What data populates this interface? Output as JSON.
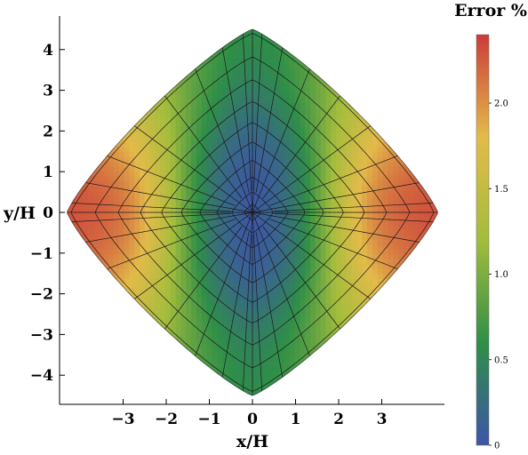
{
  "chart_data": {
    "type": "heatmap",
    "title": "",
    "xlabel": "x/H",
    "ylabel": "y/H",
    "x_ticks": [
      "−3",
      "−2",
      "−1",
      "0",
      "1",
      "2",
      "3"
    ],
    "x_tick_values": [
      -3,
      -2,
      -1,
      0,
      1,
      2,
      3
    ],
    "y_ticks": [
      "4",
      "3",
      "2",
      "1",
      "0",
      "−1",
      "−2",
      "−3",
      "−4"
    ],
    "y_tick_values": [
      4,
      3,
      2,
      1,
      0,
      -1,
      -2,
      -3,
      -4
    ],
    "xlim": [
      -4.6,
      4.6
    ],
    "ylim": [
      -4.6,
      4.6
    ],
    "domain_extent": {
      "x_half_width": 4.3,
      "y_half_height": 4.5
    },
    "colorbar": {
      "title": "Error %",
      "ticks": [
        "0",
        "0.5",
        "1.0",
        "1.5",
        "2.0"
      ],
      "tick_values": [
        0,
        0.5,
        1.0,
        1.5,
        2.0
      ],
      "range": [
        0,
        2.4
      ],
      "colors": [
        "#3d55a8",
        "#2f8f47",
        "#a3bd3c",
        "#e3bb4a",
        "#cc3b3a"
      ]
    },
    "field_description_values": {
      "center_error": 0.0,
      "left_right_lobes_error": 2.3,
      "top_bottom_error": 0.6,
      "diagonal_edges_error": 1.1
    },
    "grid": "polar mesh overlay"
  }
}
